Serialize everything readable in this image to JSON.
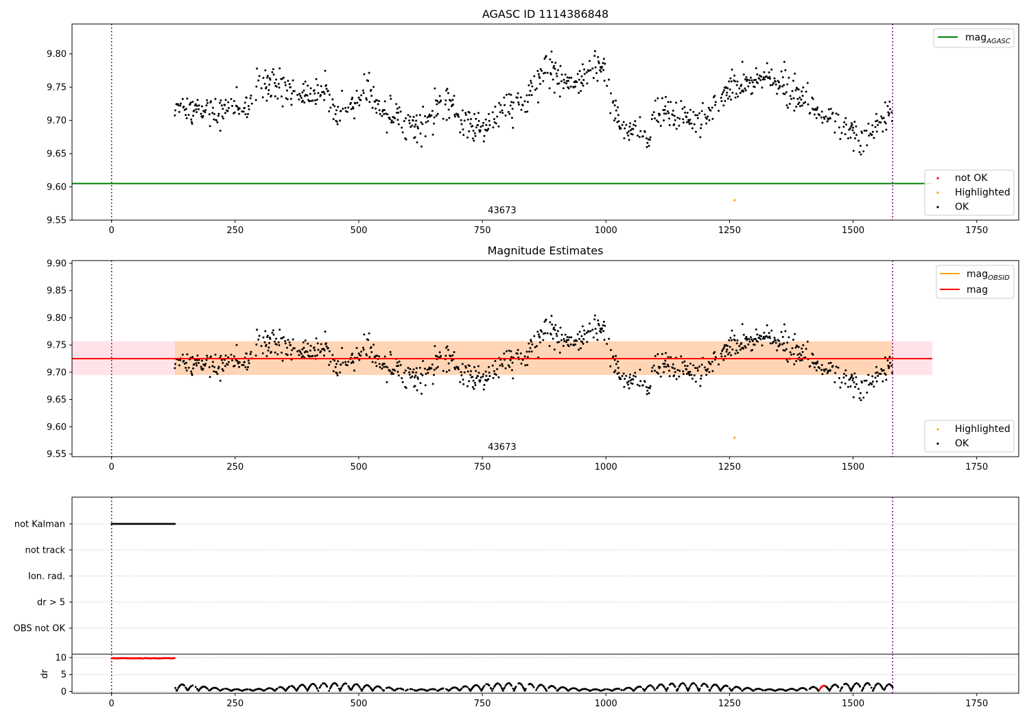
{
  "chart_data": [
    {
      "type": "scatter",
      "title": "AGASC ID 1114386848",
      "xlim": [
        -80,
        1835
      ],
      "ylim": [
        9.55,
        9.845
      ],
      "x_ticks": [
        "0",
        "250",
        "500",
        "750",
        "1000",
        "1250",
        "1500",
        "1750"
      ],
      "y_ticks": [
        "9.55",
        "9.60",
        "9.65",
        "9.70",
        "9.75",
        "9.80"
      ],
      "obsid_label": "43673",
      "obsid_label_x": 790,
      "vlines": [
        0,
        1580
      ],
      "hline": {
        "name": "mag_AGASC",
        "value": 9.605,
        "color": "#008000",
        "x_range": [
          -80,
          1660
        ]
      },
      "legend_top": {
        "placement": "top-right",
        "entries": [
          {
            "label": "mag",
            "sub": "AGASC",
            "color": "#008000"
          }
        ]
      },
      "legend_bottom": {
        "placement": "bottom-right",
        "entries": [
          {
            "label": "not OK",
            "color": "#ff0000"
          },
          {
            "label": "Highlighted",
            "color": "#ffa500"
          },
          {
            "label": "OK",
            "color": "#000000"
          }
        ]
      },
      "highlighted_points": [
        {
          "x": 1260,
          "y": 9.58
        }
      ],
      "series_ok_trend": [
        [
          128,
          9.72
        ],
        [
          175,
          9.715
        ],
        [
          215,
          9.71
        ],
        [
          245,
          9.72
        ],
        [
          280,
          9.72
        ],
        [
          295,
          9.765
        ],
        [
          340,
          9.75
        ],
        [
          390,
          9.74
        ],
        [
          430,
          9.74
        ],
        [
          460,
          9.72
        ],
        [
          490,
          9.72
        ],
        [
          510,
          9.745
        ],
        [
          550,
          9.72
        ],
        [
          590,
          9.7
        ],
        [
          625,
          9.69
        ],
        [
          660,
          9.73
        ],
        [
          700,
          9.71
        ],
        [
          730,
          9.685
        ],
        [
          770,
          9.7
        ],
        [
          800,
          9.72
        ],
        [
          840,
          9.73
        ],
        [
          880,
          9.78
        ],
        [
          910,
          9.765
        ],
        [
          940,
          9.755
        ],
        [
          970,
          9.78
        ],
        [
          1000,
          9.785
        ],
        [
          1010,
          9.73
        ],
        [
          1030,
          9.69
        ],
        [
          1060,
          9.685
        ],
        [
          1085,
          9.665
        ],
        [
          1100,
          9.715
        ],
        [
          1140,
          9.7
        ],
        [
          1170,
          9.7
        ],
        [
          1200,
          9.695
        ],
        [
          1230,
          9.73
        ],
        [
          1260,
          9.755
        ],
        [
          1300,
          9.755
        ],
        [
          1330,
          9.765
        ],
        [
          1360,
          9.76
        ],
        [
          1390,
          9.74
        ],
        [
          1420,
          9.72
        ],
        [
          1460,
          9.695
        ],
        [
          1490,
          9.68
        ],
        [
          1520,
          9.67
        ],
        [
          1550,
          9.695
        ],
        [
          1575,
          9.71
        ]
      ]
    },
    {
      "type": "scatter",
      "title": "Magnitude Estimates",
      "xlim": [
        -80,
        1835
      ],
      "ylim": [
        9.545,
        9.905
      ],
      "x_ticks": [
        "0",
        "250",
        "500",
        "750",
        "1000",
        "1250",
        "1500",
        "1750"
      ],
      "y_ticks": [
        "9.55",
        "9.60",
        "9.65",
        "9.70",
        "9.75",
        "9.80",
        "9.85",
        "9.90"
      ],
      "obsid_label": "43673",
      "obsid_label_x": 790,
      "vlines": [
        0,
        1580
      ],
      "mag_line": {
        "name": "mag",
        "value": 9.725,
        "color": "#ff0000",
        "x_range": [
          -80,
          1660
        ]
      },
      "mag_band": {
        "low": 9.695,
        "high": 9.757,
        "x_range": [
          -80,
          1660
        ],
        "color": "#ffc0cb"
      },
      "obsid_band": {
        "low": 9.695,
        "high": 9.757,
        "x_range": [
          128,
          1580
        ],
        "color": "#ffa500"
      },
      "legend_top": {
        "placement": "top-right",
        "entries": [
          {
            "label": "mag",
            "sub": "OBSID",
            "color": "#ffa500"
          },
          {
            "label": "mag",
            "color": "#ff0000"
          }
        ]
      },
      "legend_bottom": {
        "placement": "bottom-right",
        "entries": [
          {
            "label": "Highlighted",
            "color": "#ffa500"
          },
          {
            "label": "OK",
            "color": "#000000"
          }
        ]
      },
      "highlighted_points": [
        {
          "x": 1260,
          "y": 9.58
        }
      ]
    },
    {
      "type": "scatter",
      "title": "",
      "categories": [
        "not Kalman",
        "not track",
        "Ion. rad.",
        "dr > 5",
        "OBS not OK"
      ],
      "flag_segments": [
        {
          "category": "not Kalman",
          "x_range": [
            0,
            128
          ],
          "color": "#000000"
        }
      ],
      "vlines": [
        0,
        1580
      ]
    },
    {
      "type": "scatter",
      "ylabel": "dr",
      "xlim": [
        -80,
        1835
      ],
      "ylim": [
        -0.5,
        11
      ],
      "x_ticks": [
        "0",
        "250",
        "500",
        "750",
        "1000",
        "1250",
        "1500",
        "1750"
      ],
      "y_ticks": [
        "0",
        "5",
        "10"
      ],
      "flag_segments": [
        {
          "x_range": [
            0,
            128
          ],
          "y": 9.8,
          "color": "#ff0000"
        }
      ],
      "red_points_x_range": [
        1432,
        1445
      ],
      "vlines": [
        0,
        1580
      ]
    }
  ]
}
